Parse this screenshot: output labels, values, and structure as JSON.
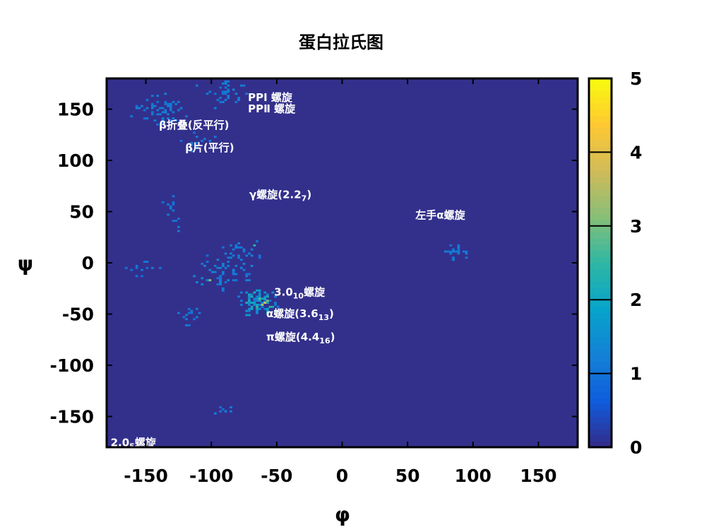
{
  "chart_data": {
    "type": "heatmap",
    "title": "蛋白拉氏图",
    "xlabel": "φ",
    "ylabel": "ψ",
    "xlim": [
      -180,
      180
    ],
    "ylim": [
      -180,
      180
    ],
    "xticks": [
      -150,
      -100,
      -50,
      0,
      50,
      100,
      150
    ],
    "yticks": [
      150,
      100,
      50,
      0,
      -50,
      -100,
      -150
    ],
    "colorbar": {
      "range": [
        0,
        5
      ],
      "ticks": [
        0,
        1,
        2,
        3,
        4,
        5
      ],
      "colors": [
        "#352a87",
        "#0f5cdd",
        "#1481d6",
        "#06a4ca",
        "#2eb7a4",
        "#87bf77",
        "#d1bb59",
        "#fec832",
        "#f9fb0e"
      ]
    },
    "background_color": "#33308c",
    "annotations": [
      {
        "text": "PPI 螺旋",
        "sub": "",
        "tail": "",
        "x": -72,
        "y": 158
      },
      {
        "text": "PPⅡ 螺旋",
        "sub": "",
        "tail": "",
        "x": -72,
        "y": 147
      },
      {
        "text": "β折叠(反平行)",
        "sub": "",
        "tail": "",
        "x": -140,
        "y": 131
      },
      {
        "text": "β片(平行)",
        "sub": "",
        "tail": "",
        "x": -120,
        "y": 109
      },
      {
        "text": "γ螺旋(2.2",
        "sub": "7",
        "tail": ")",
        "x": -71,
        "y": 63
      },
      {
        "text": "左手α螺旋",
        "sub": "",
        "tail": "",
        "x": 56,
        "y": 43
      },
      {
        "text": "3.0",
        "sub": "10",
        "tail": "螺旋",
        "x": -52,
        "y": -32
      },
      {
        "text": "α螺旋(3.6",
        "sub": "13",
        "tail": ")",
        "x": -58,
        "y": -53
      },
      {
        "text": "π螺旋(4.4",
        "sub": "16",
        "tail": ")",
        "x": -58,
        "y": -76
      },
      {
        "text": "2.0",
        "sub": "5",
        "tail": "螺旋",
        "x": -177,
        "y": -179
      }
    ],
    "clusters": [
      {
        "cx": -140,
        "cy": 150,
        "sx": 14,
        "sy": 10,
        "n": 60,
        "lvl": [
          1,
          1.3
        ]
      },
      {
        "cx": -88,
        "cy": 165,
        "sx": 10,
        "sy": 10,
        "n": 35,
        "lvl": [
          1,
          1.3
        ]
      },
      {
        "cx": -110,
        "cy": 118,
        "sx": 8,
        "sy": 12,
        "n": 12,
        "lvl": [
          1,
          1.2
        ]
      },
      {
        "cx": -130,
        "cy": 50,
        "sx": 8,
        "sy": 12,
        "n": 14,
        "lvl": [
          1,
          1.2
        ]
      },
      {
        "cx": -75,
        "cy": 10,
        "sx": 14,
        "sy": 8,
        "n": 30,
        "lvl": [
          1,
          1.3
        ]
      },
      {
        "cx": -88,
        "cy": -12,
        "sx": 18,
        "sy": 10,
        "n": 55,
        "lvl": [
          1,
          1.4
        ]
      },
      {
        "cx": -150,
        "cy": -8,
        "sx": 10,
        "sy": 7,
        "n": 12,
        "lvl": [
          1,
          1.2
        ]
      },
      {
        "cx": -65,
        "cy": -40,
        "sx": 10,
        "sy": 8,
        "n": 90,
        "lvl": [
          1,
          2.2
        ]
      },
      {
        "cx": -117,
        "cy": -50,
        "sx": 7,
        "sy": 8,
        "n": 14,
        "lvl": [
          1,
          1.2
        ]
      },
      {
        "cx": 88,
        "cy": 10,
        "sx": 7,
        "sy": 7,
        "n": 22,
        "lvl": [
          1,
          1.3
        ]
      },
      {
        "cx": -90,
        "cy": -143,
        "sx": 6,
        "sy": 4,
        "n": 10,
        "lvl": [
          1,
          1.2
        ]
      }
    ],
    "hot_cells": [
      {
        "x": -60,
        "y": -40,
        "value": 4.0
      },
      {
        "x": -62,
        "y": -42,
        "value": 3.4
      },
      {
        "x": -58,
        "y": -37,
        "value": 3.0
      },
      {
        "x": -64,
        "y": -36,
        "value": 2.8
      },
      {
        "x": -66,
        "y": -44,
        "value": 2.6
      },
      {
        "x": -56,
        "y": -44,
        "value": 2.5
      },
      {
        "x": -68,
        "y": -30,
        "value": 2.3
      },
      {
        "x": -102,
        "y": -18,
        "value": 3.2
      },
      {
        "x": -68,
        "y": 16,
        "value": 2.4
      }
    ]
  }
}
